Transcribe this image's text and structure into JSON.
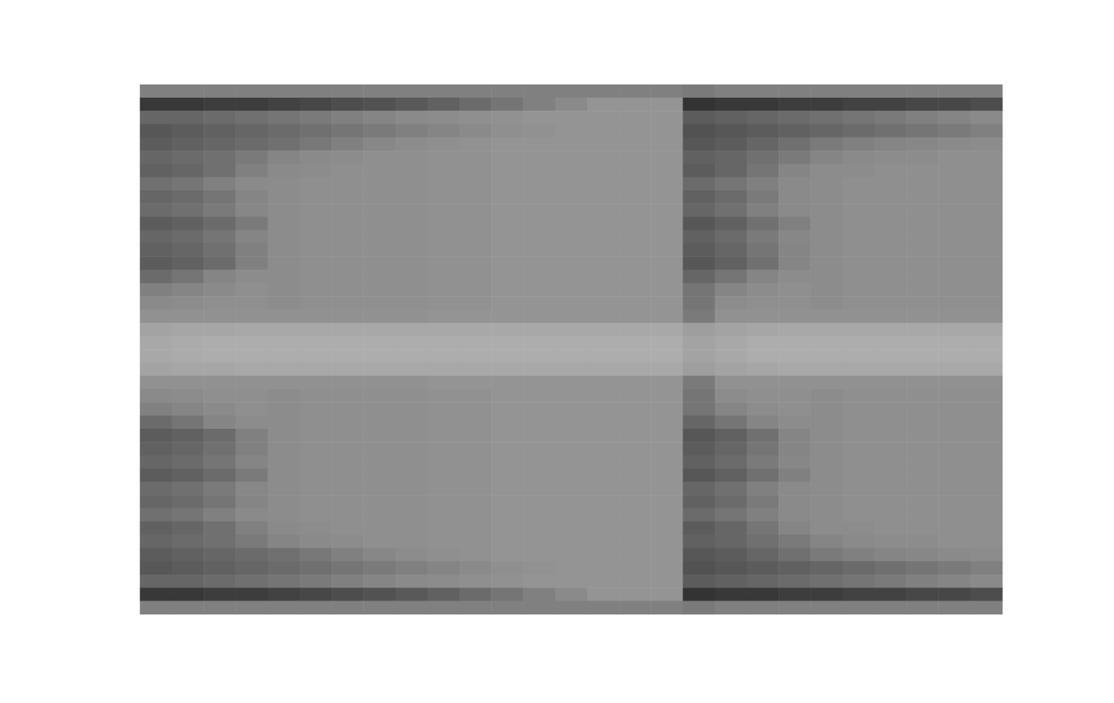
{
  "chart_data": {
    "type": "heatmap",
    "tick_labels": false,
    "color_range": [
      0,
      100
    ],
    "cells": [
      [
        50,
        50,
        50,
        50,
        50,
        50,
        50,
        50,
        50,
        50,
        50,
        50,
        50,
        50,
        50,
        50,
        50,
        48,
        50,
        50,
        50,
        50,
        50,
        50,
        50,
        50,
        50
      ],
      [
        22,
        22,
        24,
        24,
        26,
        28,
        30,
        32,
        35,
        38,
        42,
        46,
        50,
        54,
        58,
        58,
        58,
        20,
        22,
        22,
        24,
        24,
        26,
        26,
        28,
        28,
        30
      ],
      [
        40,
        40,
        42,
        44,
        46,
        48,
        50,
        52,
        54,
        55,
        56,
        57,
        58,
        58,
        58,
        58,
        58,
        36,
        38,
        40,
        42,
        44,
        46,
        48,
        50,
        52,
        54
      ],
      [
        34,
        36,
        38,
        40,
        42,
        44,
        46,
        48,
        50,
        52,
        54,
        56,
        57,
        58,
        58,
        58,
        58,
        32,
        34,
        36,
        38,
        40,
        42,
        44,
        46,
        48,
        50
      ],
      [
        36,
        38,
        40,
        42,
        44,
        47,
        50,
        53,
        55,
        56,
        57,
        58,
        58,
        58,
        58,
        58,
        58,
        34,
        36,
        40,
        44,
        48,
        50,
        52,
        53,
        54,
        55
      ],
      [
        40,
        42,
        44,
        48,
        52,
        54,
        55,
        56,
        56,
        57,
        57,
        58,
        58,
        58,
        58,
        58,
        58,
        38,
        40,
        44,
        48,
        52,
        54,
        55,
        55,
        56,
        56
      ],
      [
        38,
        40,
        44,
        50,
        54,
        55,
        56,
        56,
        56,
        57,
        57,
        58,
        58,
        58,
        58,
        58,
        58,
        36,
        40,
        46,
        52,
        55,
        55,
        56,
        56,
        56,
        56
      ],
      [
        44,
        46,
        50,
        54,
        55,
        56,
        56,
        56,
        56,
        57,
        57,
        58,
        58,
        58,
        58,
        58,
        58,
        42,
        46,
        50,
        54,
        55,
        56,
        56,
        56,
        56,
        56
      ],
      [
        40,
        42,
        46,
        52,
        55,
        56,
        56,
        56,
        56,
        57,
        57,
        58,
        58,
        58,
        58,
        58,
        58,
        38,
        42,
        48,
        54,
        55,
        56,
        56,
        56,
        56,
        56
      ],
      [
        42,
        44,
        48,
        53,
        55,
        56,
        56,
        56,
        56,
        57,
        57,
        58,
        58,
        58,
        58,
        58,
        58,
        40,
        44,
        50,
        54,
        55,
        56,
        56,
        56,
        56,
        56
      ],
      [
        36,
        38,
        42,
        48,
        55,
        56,
        56,
        56,
        56,
        57,
        57,
        58,
        58,
        58,
        58,
        58,
        58,
        34,
        38,
        44,
        50,
        55,
        56,
        56,
        56,
        56,
        56
      ],
      [
        40,
        42,
        46,
        52,
        55,
        56,
        56,
        56,
        56,
        57,
        57,
        58,
        58,
        58,
        58,
        58,
        58,
        38,
        42,
        48,
        53,
        55,
        56,
        56,
        56,
        56,
        56
      ],
      [
        38,
        40,
        44,
        50,
        55,
        56,
        56,
        56,
        56,
        57,
        57,
        58,
        58,
        58,
        58,
        58,
        58,
        36,
        40,
        46,
        52,
        55,
        56,
        56,
        56,
        56,
        56
      ],
      [
        36,
        38,
        42,
        50,
        55,
        56,
        56,
        56,
        56,
        57,
        57,
        58,
        58,
        58,
        58,
        58,
        58,
        34,
        38,
        44,
        52,
        55,
        56,
        56,
        56,
        56,
        56
      ],
      [
        42,
        46,
        52,
        55,
        55,
        56,
        56,
        56,
        56,
        57,
        57,
        58,
        58,
        58,
        58,
        58,
        58,
        40,
        46,
        52,
        55,
        55,
        56,
        56,
        56,
        56,
        56
      ],
      [
        50,
        52,
        54,
        56,
        55,
        56,
        56,
        56,
        56,
        57,
        57,
        58,
        58,
        58,
        58,
        58,
        58,
        46,
        52,
        55,
        56,
        55,
        56,
        56,
        56,
        56,
        56
      ],
      [
        54,
        55,
        56,
        56,
        55,
        56,
        56,
        56,
        56,
        57,
        57,
        58,
        58,
        58,
        58,
        58,
        58,
        46,
        55,
        56,
        56,
        55,
        56,
        56,
        56,
        56,
        56
      ],
      [
        57,
        57,
        57,
        57,
        57,
        57,
        57,
        57,
        57,
        58,
        58,
        58,
        58,
        58,
        58,
        58,
        58,
        48,
        57,
        57,
        57,
        57,
        57,
        57,
        57,
        57,
        57
      ],
      [
        64,
        65,
        65,
        66,
        66,
        66,
        66,
        66,
        66,
        66,
        66,
        66,
        66,
        66,
        66,
        66,
        66,
        62,
        64,
        65,
        66,
        66,
        66,
        66,
        66,
        66,
        66
      ],
      [
        66,
        67,
        68,
        68,
        68,
        68,
        68,
        68,
        68,
        68,
        68,
        68,
        68,
        68,
        68,
        68,
        68,
        64,
        66,
        68,
        68,
        68,
        68,
        68,
        68,
        68,
        68
      ],
      [
        66,
        67,
        68,
        68,
        68,
        68,
        68,
        68,
        68,
        68,
        68,
        68,
        68,
        68,
        68,
        68,
        68,
        64,
        66,
        68,
        68,
        68,
        68,
        68,
        68,
        68,
        68
      ],
      [
        64,
        65,
        65,
        66,
        66,
        66,
        66,
        66,
        66,
        66,
        66,
        66,
        66,
        66,
        66,
        66,
        66,
        62,
        64,
        65,
        66,
        66,
        66,
        66,
        66,
        66,
        66
      ],
      [
        57,
        57,
        57,
        57,
        57,
        57,
        57,
        57,
        57,
        58,
        58,
        58,
        58,
        58,
        58,
        58,
        58,
        48,
        57,
        57,
        57,
        57,
        57,
        57,
        57,
        57,
        57
      ],
      [
        54,
        55,
        56,
        56,
        55,
        56,
        56,
        56,
        56,
        57,
        57,
        58,
        58,
        58,
        58,
        58,
        58,
        46,
        55,
        56,
        56,
        55,
        56,
        56,
        56,
        56,
        56
      ],
      [
        50,
        52,
        54,
        56,
        55,
        56,
        56,
        56,
        56,
        57,
        57,
        58,
        58,
        58,
        58,
        58,
        58,
        46,
        52,
        55,
        56,
        55,
        56,
        56,
        56,
        56,
        56
      ],
      [
        42,
        46,
        52,
        55,
        55,
        56,
        56,
        56,
        56,
        57,
        57,
        58,
        58,
        58,
        58,
        58,
        58,
        40,
        46,
        52,
        55,
        55,
        56,
        56,
        56,
        56,
        56
      ],
      [
        36,
        38,
        42,
        50,
        55,
        56,
        56,
        56,
        56,
        57,
        57,
        58,
        58,
        58,
        58,
        58,
        58,
        34,
        38,
        44,
        52,
        55,
        56,
        56,
        56,
        56,
        56
      ],
      [
        38,
        40,
        44,
        50,
        55,
        56,
        56,
        56,
        56,
        57,
        57,
        58,
        58,
        58,
        58,
        58,
        58,
        36,
        40,
        46,
        52,
        55,
        56,
        56,
        56,
        56,
        56
      ],
      [
        40,
        42,
        46,
        52,
        55,
        56,
        56,
        56,
        56,
        57,
        57,
        58,
        58,
        58,
        58,
        58,
        58,
        38,
        42,
        48,
        53,
        55,
        56,
        56,
        56,
        56,
        56
      ],
      [
        36,
        38,
        42,
        48,
        55,
        56,
        56,
        56,
        56,
        57,
        57,
        58,
        58,
        58,
        58,
        58,
        58,
        34,
        38,
        44,
        50,
        55,
        56,
        56,
        56,
        56,
        56
      ],
      [
        42,
        44,
        48,
        53,
        55,
        56,
        56,
        56,
        56,
        57,
        57,
        58,
        58,
        58,
        58,
        58,
        58,
        40,
        44,
        50,
        54,
        55,
        56,
        56,
        56,
        56,
        56
      ],
      [
        40,
        42,
        46,
        52,
        55,
        56,
        56,
        56,
        56,
        57,
        57,
        58,
        58,
        58,
        58,
        58,
        58,
        38,
        42,
        48,
        54,
        55,
        56,
        56,
        56,
        56,
        56
      ],
      [
        44,
        46,
        50,
        54,
        55,
        56,
        56,
        56,
        56,
        57,
        57,
        58,
        58,
        58,
        58,
        58,
        58,
        42,
        46,
        50,
        54,
        55,
        56,
        56,
        56,
        56,
        56
      ],
      [
        38,
        40,
        44,
        50,
        54,
        55,
        56,
        56,
        56,
        57,
        57,
        58,
        58,
        58,
        58,
        58,
        58,
        36,
        40,
        46,
        52,
        55,
        55,
        56,
        56,
        56,
        56
      ],
      [
        40,
        42,
        44,
        48,
        52,
        54,
        55,
        56,
        56,
        57,
        57,
        58,
        58,
        58,
        58,
        58,
        58,
        38,
        40,
        44,
        48,
        52,
        54,
        55,
        55,
        56,
        56
      ],
      [
        36,
        38,
        40,
        42,
        44,
        47,
        50,
        53,
        55,
        56,
        57,
        58,
        58,
        58,
        58,
        58,
        58,
        34,
        36,
        40,
        44,
        48,
        50,
        52,
        53,
        54,
        55
      ],
      [
        34,
        36,
        38,
        40,
        42,
        44,
        46,
        48,
        50,
        52,
        54,
        56,
        57,
        58,
        58,
        58,
        58,
        32,
        34,
        36,
        38,
        40,
        42,
        44,
        46,
        48,
        50
      ],
      [
        40,
        40,
        42,
        44,
        46,
        48,
        50,
        52,
        54,
        55,
        56,
        57,
        58,
        58,
        58,
        58,
        58,
        36,
        38,
        40,
        42,
        44,
        46,
        48,
        50,
        52,
        54
      ],
      [
        22,
        22,
        24,
        24,
        26,
        28,
        30,
        32,
        35,
        38,
        42,
        46,
        50,
        54,
        58,
        58,
        58,
        20,
        22,
        22,
        24,
        24,
        26,
        26,
        28,
        28,
        30
      ],
      [
        50,
        50,
        50,
        50,
        50,
        50,
        50,
        50,
        50,
        50,
        50,
        50,
        50,
        50,
        50,
        50,
        50,
        48,
        50,
        50,
        50,
        50,
        50,
        50,
        50,
        50,
        50
      ]
    ]
  }
}
